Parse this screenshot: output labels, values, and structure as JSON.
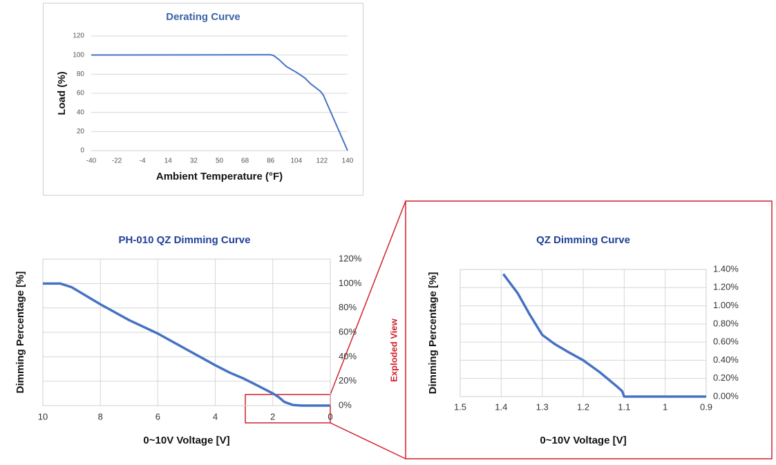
{
  "chart_data": [
    {
      "type": "line",
      "title": "Derating Curve",
      "x_label": "Ambient Temperature (°F)",
      "y_label": "Load (%)",
      "x": [
        -40,
        86,
        88,
        92,
        97,
        104,
        110,
        114,
        121,
        123,
        140
      ],
      "values": [
        100,
        100.3,
        99.5,
        95,
        88,
        82,
        76,
        70,
        62,
        58,
        0
      ],
      "color": "#4472c4",
      "xlim": [
        -40,
        140
      ],
      "xticks": [
        -40,
        -22,
        -4,
        14,
        32,
        50,
        68,
        86,
        104,
        122,
        140
      ],
      "ylim": [
        0,
        120
      ],
      "yticks": [
        0,
        20,
        40,
        60,
        80,
        100,
        120
      ],
      "grid": [
        "y"
      ]
    },
    {
      "type": "line",
      "title": "PH-010 QZ Dimming Curve",
      "x_label": "0~10V Voltage [V]",
      "y_label": "Dimming Percentage [%]",
      "annotation": "Exploded View",
      "axis": "y2",
      "x": [
        10,
        9.4,
        9,
        8,
        7,
        6,
        5,
        4,
        3.5,
        3,
        2.5,
        2,
        1.8,
        1.6,
        1.3,
        1,
        0
      ],
      "values": [
        100,
        100,
        97,
        83,
        70,
        59,
        46,
        33,
        27,
        22,
        16,
        10,
        7,
        3,
        0.5,
        0,
        0
      ],
      "color": "#4472c4",
      "xlim": [
        10,
        0
      ],
      "xticks": [
        10,
        8,
        6,
        4,
        2,
        0
      ],
      "y2lim": [
        0,
        120
      ],
      "y2ticks": [
        {
          "value": 0,
          "label": "0%"
        },
        {
          "value": 20,
          "label": "20%"
        },
        {
          "value": 40,
          "label": "40%"
        },
        {
          "value": 60,
          "label": "60%"
        },
        {
          "value": 80,
          "label": "80%"
        },
        {
          "value": 100,
          "label": "100%"
        },
        {
          "value": 120,
          "label": "120%"
        }
      ],
      "grid": [
        "x",
        "y"
      ]
    },
    {
      "type": "line",
      "title": "QZ Dimming Curve",
      "x_label": "0~10V Voltage [V]",
      "y_label": "Dimming Percentage [%]",
      "axis": "y2",
      "x": [
        1.395,
        1.36,
        1.33,
        1.3,
        1.27,
        1.24,
        1.2,
        1.16,
        1.12,
        1.105,
        1.1,
        0.9
      ],
      "values": [
        1.35,
        1.14,
        0.9,
        0.68,
        0.58,
        0.5,
        0.4,
        0.27,
        0.12,
        0.06,
        0,
        0
      ],
      "color": "#4472c4",
      "xlim": [
        1.5,
        0.9
      ],
      "xticks": [
        1.5,
        1.4,
        1.3,
        1.2,
        1.1,
        1,
        0.9
      ],
      "y2lim": [
        0,
        1.4
      ],
      "y2ticks": [
        {
          "value": 0,
          "label": "0.00%"
        },
        {
          "value": 0.2,
          "label": "0.20%"
        },
        {
          "value": 0.4,
          "label": "0.40%"
        },
        {
          "value": 0.6,
          "label": "0.60%"
        },
        {
          "value": 0.8,
          "label": "0.80%"
        },
        {
          "value": 1,
          "label": "1.00%"
        },
        {
          "value": 1.2,
          "label": "1.20%"
        },
        {
          "value": 1.4,
          "label": "1.40%"
        }
      ],
      "grid": [
        "x",
        "y"
      ]
    }
  ]
}
